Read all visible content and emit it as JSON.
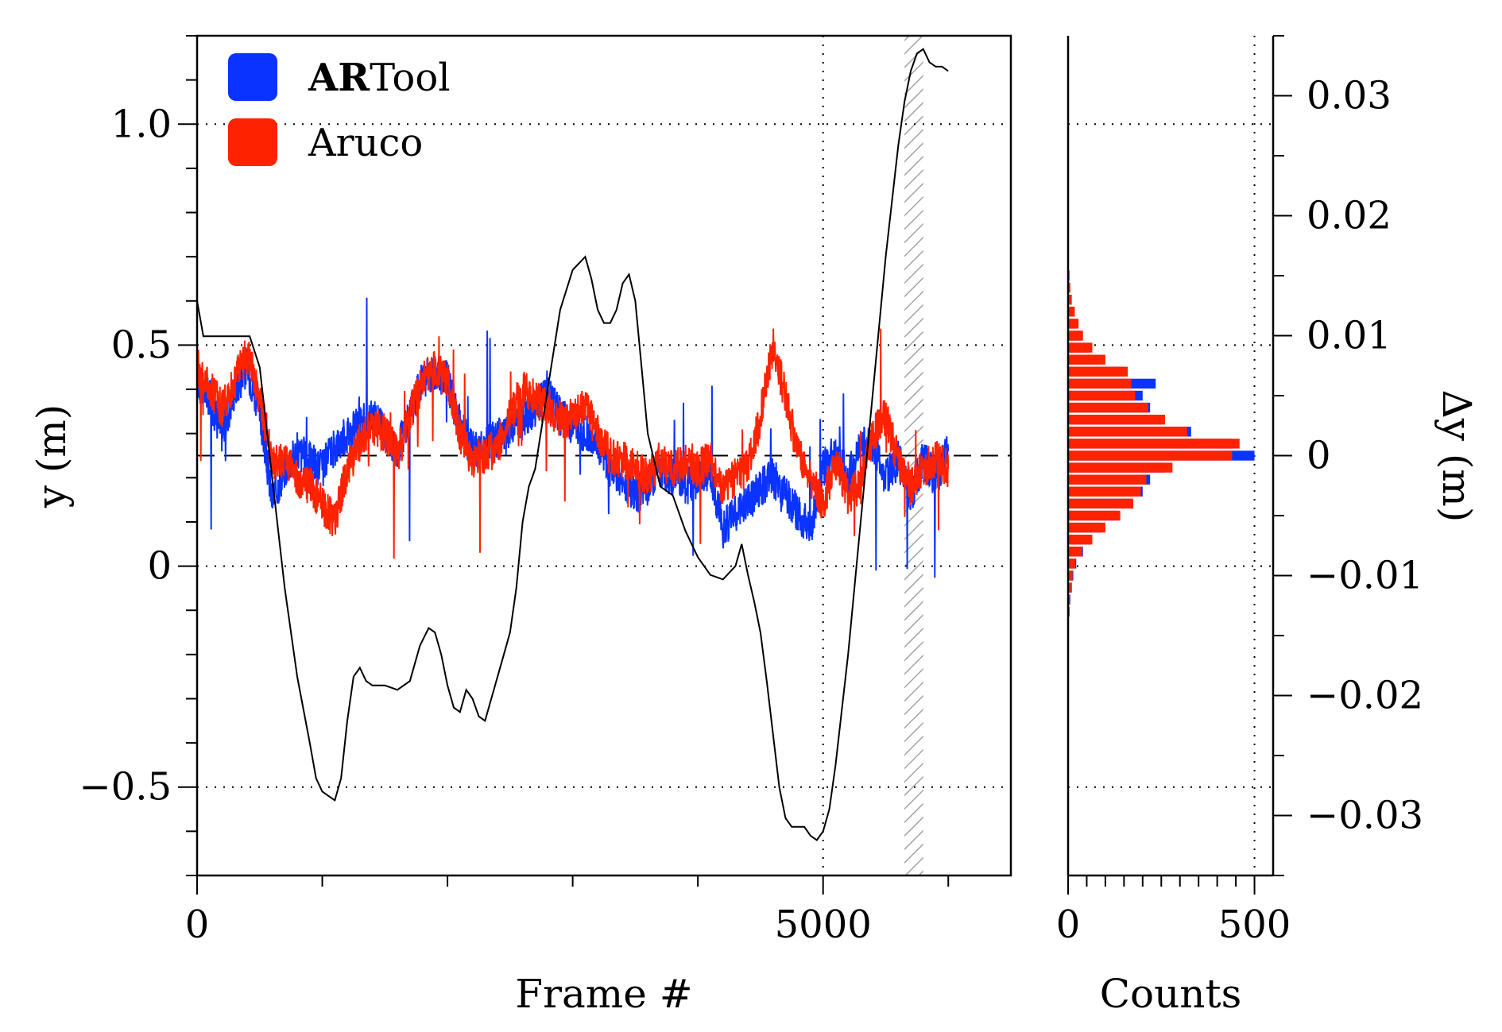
{
  "colors": {
    "artool": "#0a33ff",
    "aruco": "#ff2200",
    "reference": "#000000",
    "grid": "#000000",
    "hatch": "#999999"
  },
  "chart_data": [
    {
      "type": "line",
      "xlabel": "Frame #",
      "ylabel": "y (m)",
      "xlim": [
        0,
        6500
      ],
      "ylim": [
        -0.7,
        1.2
      ],
      "xticks_major": [
        0,
        5000
      ],
      "xtick_labels": [
        "0",
        "5000"
      ],
      "yticks_major": [
        -0.5,
        0,
        0.5,
        1.0
      ],
      "ytick_labels": [
        "−0.5",
        "0",
        "0.5",
        "1.0"
      ],
      "grid": "dotted at y = -0.5, 0, 0.5, 1.0 and x = 5000",
      "legend": {
        "placement": "top-left",
        "entries": [
          {
            "bold": "AR",
            "text": "Tool",
            "color_key": "artool"
          },
          {
            "bold": "",
            "text": "Aruco",
            "color_key": "aruco"
          }
        ]
      },
      "reference_level": 0.25,
      "hatched_span": [
        5650,
        5800
      ],
      "series": [
        {
          "name": "ARTool",
          "x": [
            0,
            100,
            200,
            300,
            400,
            500,
            600,
            700,
            800,
            900,
            1000,
            1100,
            1200,
            1300,
            1400,
            1500,
            1600,
            1700,
            1800,
            1900,
            2000,
            2100,
            2200,
            2300,
            2400,
            2500,
            2600,
            2700,
            2800,
            2900,
            3000,
            3100,
            3200,
            3300,
            3400,
            3500,
            3600,
            3700,
            3800,
            3900,
            4000,
            4100,
            4200,
            4300,
            4400,
            4500,
            4600,
            4700,
            4800,
            4900,
            5000,
            5100,
            5200,
            5300,
            5400,
            5500,
            5600,
            5700,
            5800,
            5900,
            6000
          ],
          "y": [
            0.42,
            0.38,
            0.3,
            0.4,
            0.45,
            0.35,
            0.15,
            0.22,
            0.26,
            0.24,
            0.22,
            0.27,
            0.3,
            0.32,
            0.34,
            0.3,
            0.26,
            0.34,
            0.42,
            0.44,
            0.42,
            0.32,
            0.26,
            0.27,
            0.29,
            0.3,
            0.33,
            0.36,
            0.4,
            0.34,
            0.32,
            0.3,
            0.28,
            0.22,
            0.2,
            0.16,
            0.18,
            0.22,
            0.2,
            0.18,
            0.2,
            0.22,
            0.08,
            0.12,
            0.14,
            0.18,
            0.2,
            0.16,
            0.12,
            0.08,
            0.22,
            0.26,
            0.2,
            0.27,
            0.28,
            0.2,
            0.24,
            0.16,
            0.24,
            0.2,
            0.26
          ]
        },
        {
          "name": "Aruco",
          "x": [
            0,
            100,
            200,
            300,
            400,
            500,
            600,
            700,
            800,
            900,
            1000,
            1100,
            1200,
            1300,
            1400,
            1500,
            1600,
            1700,
            1800,
            1900,
            2000,
            2100,
            2200,
            2300,
            2400,
            2500,
            2600,
            2700,
            2800,
            2900,
            3000,
            3100,
            3200,
            3300,
            3400,
            3500,
            3600,
            3700,
            3800,
            3900,
            4000,
            4100,
            4200,
            4300,
            4400,
            4500,
            4600,
            4700,
            4800,
            4900,
            5000,
            5100,
            5200,
            5300,
            5400,
            5500,
            5600,
            5700,
            5800,
            5900,
            6000
          ],
          "y": [
            0.45,
            0.4,
            0.36,
            0.42,
            0.48,
            0.38,
            0.24,
            0.24,
            0.2,
            0.18,
            0.14,
            0.1,
            0.22,
            0.28,
            0.32,
            0.3,
            0.25,
            0.34,
            0.42,
            0.45,
            0.42,
            0.3,
            0.24,
            0.25,
            0.27,
            0.34,
            0.4,
            0.38,
            0.36,
            0.33,
            0.34,
            0.36,
            0.3,
            0.25,
            0.24,
            0.22,
            0.2,
            0.24,
            0.22,
            0.24,
            0.22,
            0.24,
            0.18,
            0.2,
            0.22,
            0.34,
            0.5,
            0.38,
            0.26,
            0.2,
            0.14,
            0.24,
            0.16,
            0.18,
            0.3,
            0.34,
            0.24,
            0.18,
            0.22,
            0.24,
            0.22
          ]
        },
        {
          "name": "reference",
          "x": [
            0,
            50,
            150,
            300,
            420,
            500,
            600,
            700,
            800,
            900,
            950,
            1000,
            1050,
            1100,
            1150,
            1200,
            1250,
            1300,
            1350,
            1400,
            1450,
            1500,
            1600,
            1700,
            1780,
            1850,
            1900,
            1950,
            2000,
            2050,
            2100,
            2150,
            2200,
            2250,
            2300,
            2350,
            2400,
            2450,
            2500,
            2550,
            2600,
            2650,
            2700,
            2800,
            2900,
            3000,
            3100,
            3150,
            3200,
            3250,
            3300,
            3350,
            3400,
            3450,
            3500,
            3550,
            3600,
            3700,
            3800,
            3900,
            4000,
            4100,
            4200,
            4300,
            4350,
            4400,
            4450,
            4500,
            4550,
            4600,
            4650,
            4700,
            4750,
            4800,
            4850,
            4900,
            4950,
            5000,
            5050,
            5100,
            5200,
            5300,
            5400,
            5500,
            5600,
            5650,
            5700,
            5750,
            5800,
            5850,
            5900,
            5950,
            6000
          ],
          "y": [
            0.6,
            0.52,
            0.52,
            0.52,
            0.52,
            0.45,
            0.2,
            -0.05,
            -0.25,
            -0.4,
            -0.48,
            -0.51,
            -0.52,
            -0.53,
            -0.48,
            -0.35,
            -0.25,
            -0.23,
            -0.26,
            -0.27,
            -0.27,
            -0.27,
            -0.28,
            -0.26,
            -0.18,
            -0.14,
            -0.15,
            -0.2,
            -0.27,
            -0.32,
            -0.33,
            -0.28,
            -0.3,
            -0.34,
            -0.35,
            -0.3,
            -0.25,
            -0.2,
            -0.15,
            -0.05,
            0.1,
            0.18,
            0.22,
            0.4,
            0.58,
            0.67,
            0.7,
            0.65,
            0.58,
            0.55,
            0.55,
            0.58,
            0.64,
            0.66,
            0.6,
            0.45,
            0.3,
            0.18,
            0.16,
            0.08,
            0.02,
            -0.02,
            -0.03,
            0.0,
            0.05,
            -0.02,
            -0.08,
            -0.15,
            -0.26,
            -0.38,
            -0.5,
            -0.57,
            -0.59,
            -0.59,
            -0.59,
            -0.61,
            -0.62,
            -0.6,
            -0.55,
            -0.45,
            -0.2,
            0.1,
            0.4,
            0.7,
            0.95,
            1.05,
            1.12,
            1.16,
            1.17,
            1.14,
            1.13,
            1.13,
            1.12
          ]
        }
      ]
    },
    {
      "type": "bar",
      "orientation": "horizontal",
      "xlabel": "Counts",
      "ylabel": "Δy (m)",
      "xlim": [
        0,
        550
      ],
      "ylim": [
        -0.035,
        0.035
      ],
      "xticks_major": [
        0,
        500
      ],
      "xtick_labels": [
        "0",
        "500"
      ],
      "yticks_major": [
        -0.03,
        -0.02,
        -0.01,
        0,
        0.01,
        0.02,
        0.03
      ],
      "ytick_labels": [
        "−0.03",
        "−0.02",
        "−0.01",
        "0",
        "0.01",
        "0.02",
        "0.03"
      ],
      "grid": "dotted at x = 500",
      "bin_centers": [
        -0.014,
        -0.013,
        -0.012,
        -0.011,
        -0.01,
        -0.009,
        -0.008,
        -0.007,
        -0.006,
        -0.005,
        -0.004,
        -0.003,
        -0.002,
        -0.001,
        0.0,
        0.001,
        0.002,
        0.003,
        0.004,
        0.005,
        0.006,
        0.007,
        0.008,
        0.009,
        0.01,
        0.011,
        0.012,
        0.013,
        0.014,
        0.015,
        0.016
      ],
      "series": [
        {
          "name": "ARTool",
          "values": [
            2,
            4,
            6,
            10,
            14,
            22,
            40,
            60,
            90,
            130,
            170,
            200,
            220,
            260,
            500,
            440,
            330,
            250,
            220,
            200,
            235,
            150,
            80,
            55,
            35,
            20,
            14,
            8,
            5,
            3,
            2
          ]
        },
        {
          "name": "Aruco",
          "values": [
            2,
            3,
            5,
            8,
            12,
            20,
            38,
            65,
            100,
            140,
            175,
            195,
            210,
            280,
            440,
            460,
            320,
            260,
            215,
            180,
            170,
            160,
            100,
            65,
            40,
            28,
            18,
            10,
            6,
            4,
            2
          ]
        }
      ]
    }
  ]
}
